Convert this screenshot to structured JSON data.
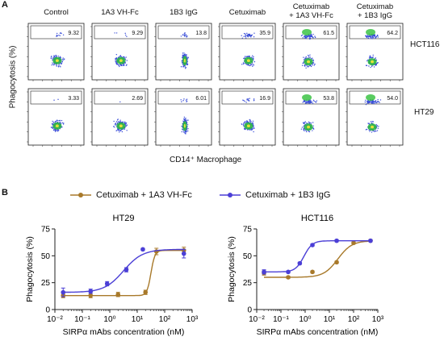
{
  "panel_a": {
    "letter": "A",
    "columns": [
      "Control",
      "1A3 VH-Fc",
      "1B3 IgG",
      "Cetuximab",
      "Cetuximab\n+ 1A3 VH-Fc",
      "Cetuximab\n+ 1B3 IgG"
    ],
    "rows": [
      {
        "label": "HCT116",
        "values": [
          "9.32",
          "9.29",
          "13.8",
          "35.9",
          "61.5",
          "64.2"
        ]
      },
      {
        "label": "HT29",
        "values": [
          "3.33",
          "2.69",
          "6.01",
          "16.9",
          "53.8",
          "54.0"
        ]
      }
    ],
    "ylabel": "Phagocytosis (%)",
    "xlabel": "CD14⁺ Macrophage",
    "colors": {
      "dots": "#3b4fd8",
      "core": "#2fbf3a",
      "hot": "#e2e23a"
    }
  },
  "panel_b": {
    "letter": "B",
    "legend": [
      {
        "label": "Cetuximab + 1A3 VH-Fc",
        "color": "#a8792a"
      },
      {
        "label": "Cetuximab + 1B3 IgG",
        "color": "#4b3fd6"
      }
    ]
  },
  "chart_data": [
    {
      "type": "line",
      "title": "HT29",
      "xlabel": "SIRPα mAbs concentration (nM)",
      "ylabel": "Phagocytosis (%)",
      "xscale": "log",
      "xlim": [
        0.01,
        1000
      ],
      "ylim": [
        0,
        75
      ],
      "xticks": [
        "10⁻²",
        "10⁻¹",
        "10⁰",
        "10¹",
        "10²",
        "10³"
      ],
      "yticks": [
        "0",
        "25",
        "50",
        "75"
      ],
      "series": [
        {
          "name": "Cetuximab + 1A3 VH-Fc",
          "color": "#a8792a",
          "x": [
            0.02,
            0.2,
            2,
            20,
            50,
            500
          ],
          "y": [
            13,
            13,
            14,
            16,
            54,
            55
          ],
          "err": [
            2,
            2,
            2,
            2,
            3,
            3
          ]
        },
        {
          "name": "Cetuximab + 1B3 IgG",
          "color": "#4b3fd6",
          "x": [
            0.02,
            0.2,
            0.8,
            4,
            16,
            500
          ],
          "y": [
            16,
            17,
            24,
            37,
            56,
            52
          ],
          "err": [
            4,
            2,
            2,
            2,
            1,
            4
          ]
        }
      ]
    },
    {
      "type": "line",
      "title": "HCT116",
      "xlabel": "SIRPα mAbs concentration (nM)",
      "ylabel": "Phagocytosis (%)",
      "xscale": "log",
      "xlim": [
        0.01,
        1000
      ],
      "ylim": [
        0,
        75
      ],
      "xticks": [
        "10⁻²",
        "10⁻¹",
        "10⁰",
        "10¹",
        "10²",
        "10³"
      ],
      "yticks": [
        "0",
        "25",
        "50",
        "75"
      ],
      "series": [
        {
          "name": "Cetuximab + 1A3 VH-Fc",
          "color": "#a8792a",
          "x": [
            0.02,
            0.2,
            2,
            20,
            100,
            500
          ],
          "y": [
            34,
            30,
            35,
            44,
            62,
            64
          ],
          "err": [
            2,
            1,
            1,
            1,
            1,
            1
          ]
        },
        {
          "name": "Cetuximab + 1B3 IgG",
          "color": "#4b3fd6",
          "x": [
            0.02,
            0.2,
            0.6,
            2,
            20,
            500
          ],
          "y": [
            35,
            35,
            43,
            60,
            64,
            64
          ],
          "err": [
            2,
            1,
            1,
            1,
            1,
            1
          ]
        }
      ]
    }
  ]
}
